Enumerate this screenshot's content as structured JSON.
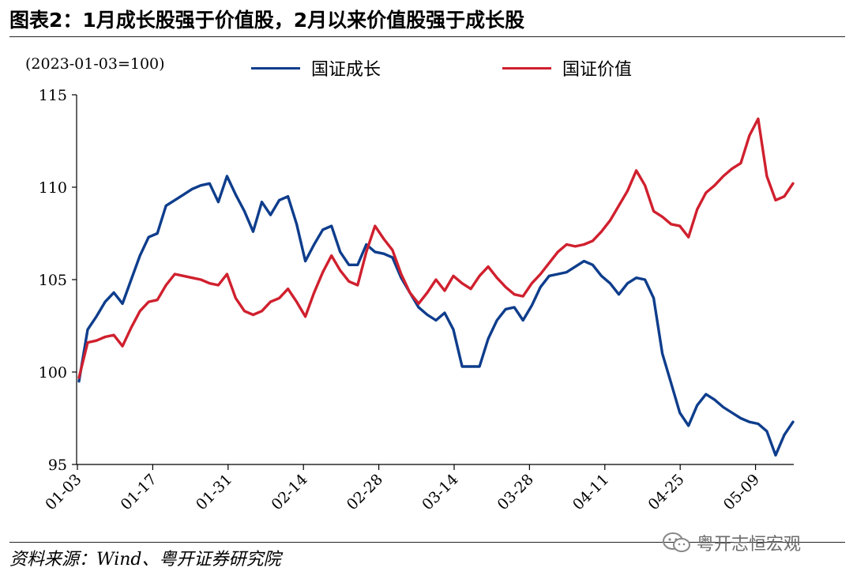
{
  "page": {
    "title": "图表2：1月成长股强于价值股，2月以来价值股强于成长股",
    "source": "资料来源：Wind、粤开证券研究院",
    "watermark": "粤开志恒宏观"
  },
  "chart_data": {
    "type": "line",
    "unit_note": "(2023-01-03=100)",
    "ylim": [
      95,
      115
    ],
    "yticks": [
      95,
      100,
      105,
      110,
      115
    ],
    "xtick_labels": [
      "01-03",
      "01-17",
      "01-31",
      "02-14",
      "02-28",
      "03-14",
      "03-28",
      "04-11",
      "04-25",
      "05-09"
    ],
    "grid": false,
    "legend_position": "top",
    "series": [
      {
        "name": "国证成长",
        "color": "#0e3d8c",
        "values": [
          99.5,
          102.3,
          103.0,
          103.8,
          104.3,
          103.7,
          105.0,
          106.3,
          107.3,
          107.5,
          109.0,
          109.3,
          109.6,
          109.9,
          110.1,
          110.2,
          109.2,
          110.6,
          109.6,
          108.7,
          107.6,
          109.2,
          108.5,
          109.3,
          109.5,
          108.0,
          106.0,
          106.9,
          107.7,
          107.9,
          106.5,
          105.8,
          105.8,
          106.9,
          106.5,
          106.4,
          106.2,
          105.1,
          104.3,
          103.5,
          103.1,
          102.8,
          103.2,
          102.3,
          100.3,
          100.3,
          100.3,
          101.8,
          102.8,
          103.4,
          103.5,
          102.8,
          103.6,
          104.6,
          105.2,
          105.3,
          105.4,
          105.7,
          106.0,
          105.8,
          105.2,
          104.8,
          104.2,
          104.8,
          105.1,
          105.0,
          104.0,
          101.0,
          99.4,
          97.8,
          97.1,
          98.2,
          98.8,
          98.5,
          98.1,
          97.8,
          97.5,
          97.3,
          97.2,
          96.8,
          95.5,
          96.6,
          97.3
        ]
      },
      {
        "name": "国证价值",
        "color": "#d0202e",
        "values": [
          99.7,
          101.6,
          101.7,
          101.9,
          102.0,
          101.4,
          102.4,
          103.3,
          103.8,
          103.9,
          104.7,
          105.3,
          105.2,
          105.1,
          105.0,
          104.8,
          104.7,
          105.3,
          104.0,
          103.3,
          103.1,
          103.3,
          103.8,
          104.0,
          104.5,
          103.8,
          103.0,
          104.3,
          105.4,
          106.3,
          105.5,
          104.9,
          104.7,
          106.5,
          107.9,
          107.2,
          106.6,
          105.3,
          104.3,
          103.7,
          104.3,
          105.0,
          104.4,
          105.2,
          104.8,
          104.5,
          105.2,
          105.7,
          105.1,
          104.6,
          104.2,
          104.1,
          104.8,
          105.3,
          105.9,
          106.5,
          106.9,
          106.8,
          106.9,
          107.1,
          107.6,
          108.2,
          109.0,
          109.8,
          110.9,
          110.1,
          108.7,
          108.4,
          108.0,
          107.9,
          107.3,
          108.8,
          109.7,
          110.1,
          110.6,
          111.0,
          111.3,
          112.8,
          113.7,
          110.6,
          109.3,
          109.5,
          110.2
        ]
      }
    ]
  }
}
